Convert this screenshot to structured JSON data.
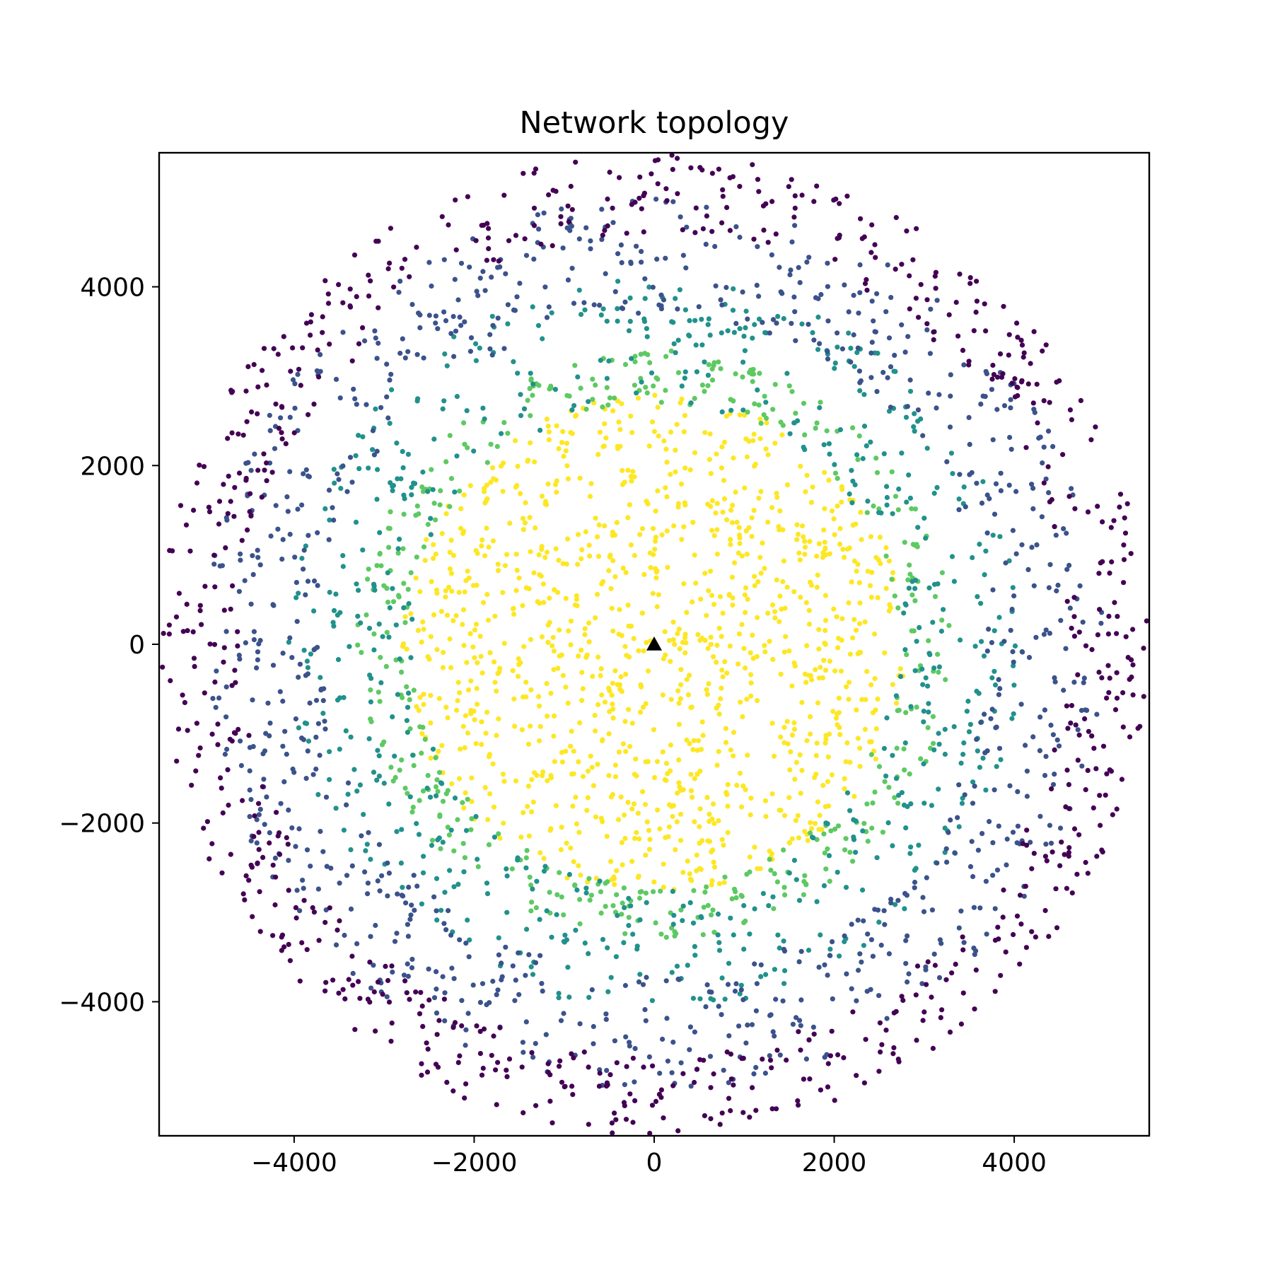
{
  "chart_data": {
    "type": "scatter",
    "title": "Network topology",
    "xlabel": "",
    "ylabel": "",
    "xlim": [
      -5500,
      5500
    ],
    "ylim": [
      -5500,
      5500
    ],
    "x_ticks": [
      -4000,
      -2000,
      0,
      2000,
      4000
    ],
    "y_ticks": [
      -4000,
      -2000,
      0,
      2000,
      4000
    ],
    "x_tick_labels": [
      "−4000",
      "−2000",
      "0",
      "2000",
      "4000"
    ],
    "y_tick_labels": [
      "−4000",
      "−2000",
      "0",
      "2000",
      "4000"
    ],
    "grid": false,
    "legend": "none",
    "colormap": "viridis",
    "center_marker": {
      "x": 0,
      "y": 0,
      "shape": "triangle",
      "color": "#000000"
    },
    "series": [
      {
        "color": "#fde725",
        "r_range": [
          0,
          2800
        ],
        "count": 1100
      },
      {
        "color": "#5ec962",
        "r_range": [
          2700,
          3300
        ],
        "count": 400
      },
      {
        "color": "#21918c",
        "r_range": [
          2700,
          4100
        ],
        "count": 620
      },
      {
        "color": "#3b528b",
        "r_range": [
          3700,
          5000
        ],
        "count": 860
      },
      {
        "color": "#440154",
        "r_range": [
          4600,
          5500
        ],
        "count": 760
      }
    ]
  }
}
